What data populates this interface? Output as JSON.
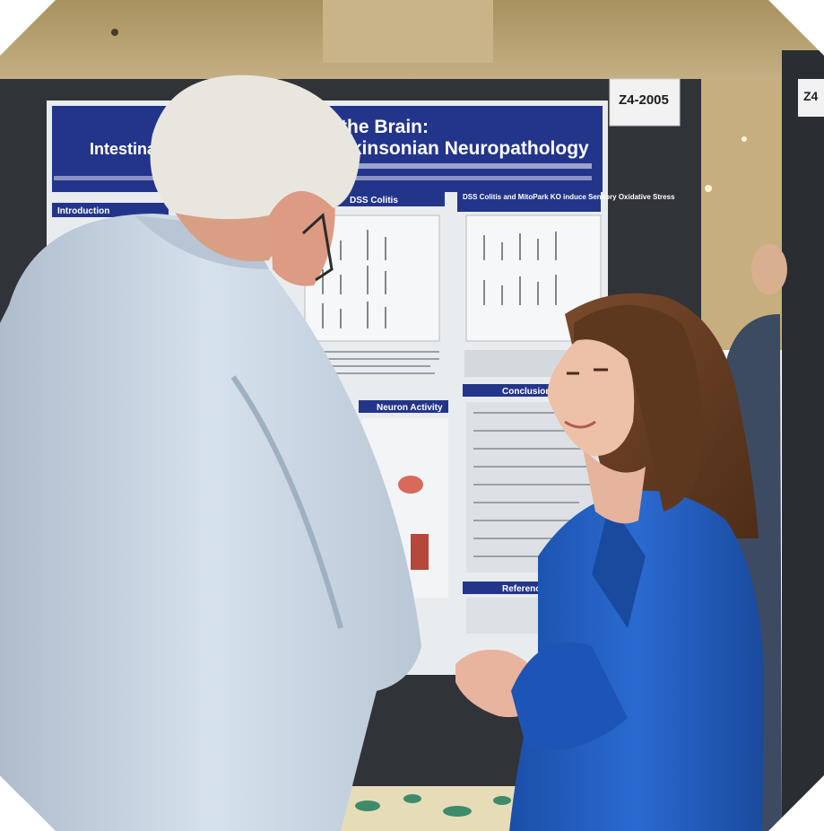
{
  "photo": {
    "poster": {
      "title_line_1": "the Brain:",
      "title_line_2": "Intestinal",
      "title_line_3": "arkinsonian Neuropathology",
      "board_number": "Z4-2005",
      "right_board_number": "Z4",
      "section_headers": [
        "Introduction",
        "DSS Colitis",
        "DSS Colitis and MitoPark KO induce Sensory Oxidative Stress",
        "Neuron Activity",
        "Conclusions",
        "References"
      ]
    },
    "colors": {
      "poster_banner": "#23358a",
      "board": "#303338",
      "man_shirt": "#c9d6e4",
      "woman_jacket": "#1f5fc4",
      "woman_hair": "#6b3f26",
      "ceiling": "#bfa77d"
    }
  }
}
